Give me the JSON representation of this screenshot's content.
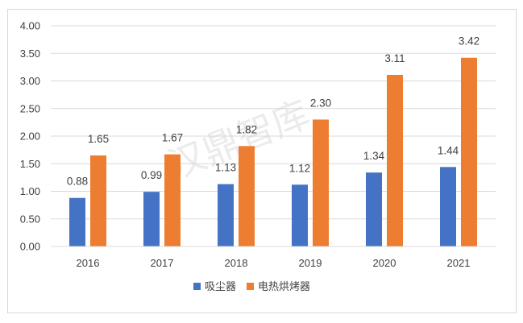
{
  "chart_data": {
    "type": "bar",
    "title": "",
    "xlabel": "",
    "ylabel": "",
    "categories": [
      "2016",
      "2017",
      "2018",
      "2019",
      "2020",
      "2021"
    ],
    "series": [
      {
        "name": "吸尘器",
        "color": "#4472c4",
        "values": [
          0.88,
          0.99,
          1.13,
          1.12,
          1.34,
          1.44
        ]
      },
      {
        "name": "电热烘烤器",
        "color": "#ed7d31",
        "values": [
          1.65,
          1.67,
          1.82,
          2.3,
          3.11,
          3.42
        ]
      }
    ],
    "ylim": [
      0,
      4
    ],
    "yticks": [
      "0.00",
      "0.50",
      "1.00",
      "1.50",
      "2.00",
      "2.50",
      "3.00",
      "3.50",
      "4.00"
    ],
    "grid": true,
    "legend_position": "bottom"
  },
  "watermark": "汉鼎智库"
}
